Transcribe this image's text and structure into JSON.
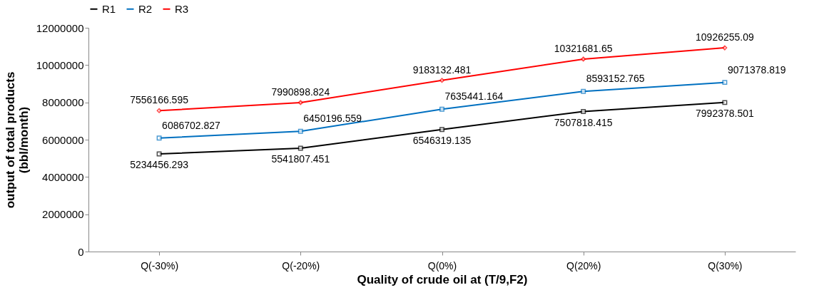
{
  "chart_data": {
    "type": "line",
    "xlabel": "Quality of crude oil at (T/9,F2)",
    "ylabel": "output of total products\n(bbl/month)",
    "categories": [
      "Q(-30%)",
      "Q(-20%)",
      "Q(0%)",
      "Q(20%)",
      "Q(30%)"
    ],
    "series": [
      {
        "name": "R1",
        "color": "#000000",
        "marker": "square",
        "values": [
          5234456.293,
          5541807.451,
          6546319.135,
          7507818.415,
          7992378.501
        ]
      },
      {
        "name": "R2",
        "color": "#0070c0",
        "marker": "square",
        "values": [
          6086702.827,
          6450196.559,
          7635441.164,
          8593152.765,
          9071378.819
        ]
      },
      {
        "name": "R3",
        "color": "#ff0000",
        "marker": "diamond",
        "values": [
          7556166.595,
          7990898.824,
          9183132.481,
          10321681.65,
          10926255.09
        ]
      }
    ],
    "ylim": [
      0,
      12000000
    ],
    "yticks": [
      0,
      2000000,
      4000000,
      6000000,
      8000000,
      10000000,
      12000000
    ],
    "grid": false,
    "legend": "top",
    "data_labels": true,
    "line_style": "solid"
  }
}
